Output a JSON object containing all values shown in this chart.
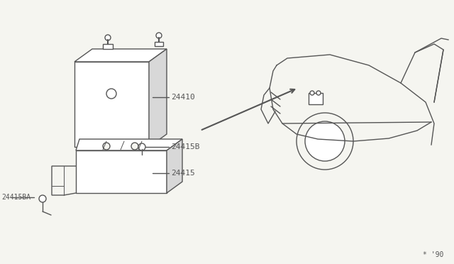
{
  "bg_color": "#f5f5f0",
  "line_color": "#555555",
  "text_color": "#555555",
  "watermark": "* '90",
  "parts": {
    "battery_label": "24410",
    "bolt_label": "24415B",
    "tray_label": "24415",
    "bracket_label": "24415BA"
  },
  "figsize": [
    6.4,
    3.72
  ],
  "dpi": 100
}
